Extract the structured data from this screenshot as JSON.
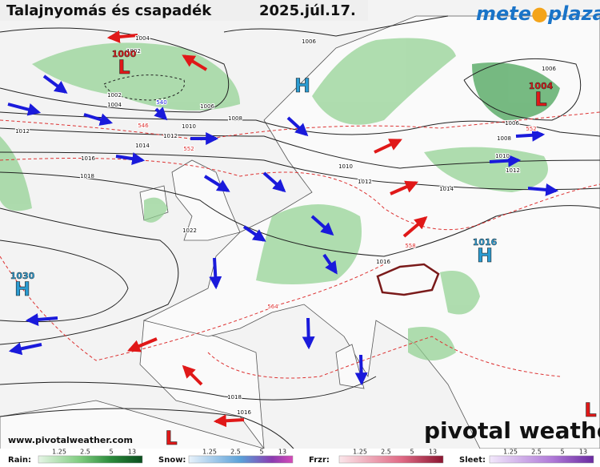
{
  "header": {
    "title": "Talajnyomás és csapadék",
    "date": "2025.júl.17.",
    "logo_left": "mete",
    "logo_right": "plaza"
  },
  "isobar_labels": [
    "1004",
    "1002",
    "1002",
    "1004",
    "540",
    "1006",
    "1006",
    "1008",
    "1010",
    "546",
    "1012",
    "1012",
    "1014",
    "552",
    "1016",
    "1018",
    "1010",
    "1012",
    "1014",
    "1022",
    "1016",
    "558",
    "564",
    "1018",
    "1016",
    "1006",
    "1006",
    "1008",
    "1010",
    "1012",
    "552"
  ],
  "centers": [
    {
      "letter": "L",
      "value": "1000"
    },
    {
      "letter": "H"
    },
    {
      "letter": "L",
      "value": "1004"
    },
    {
      "letter": "H",
      "value": "1016"
    },
    {
      "letter": "H",
      "value": "1030"
    },
    {
      "letter": "L"
    },
    {
      "letter": "L"
    }
  ],
  "footer": {
    "url": "www.pivotalweather.com",
    "brand": "pivotal weather"
  },
  "legend": [
    {
      "name": "Rain:",
      "ticks": [
        1.25,
        2.5,
        5,
        13
      ]
    },
    {
      "name": "Snow:",
      "ticks": [
        1.25,
        2.5,
        5,
        13
      ]
    },
    {
      "name": "Frzr:",
      "ticks": [
        1.25,
        2.5,
        5,
        13
      ]
    },
    {
      "name": "Sleet:",
      "ticks": [
        1.25,
        2.5,
        5,
        13
      ]
    }
  ]
}
